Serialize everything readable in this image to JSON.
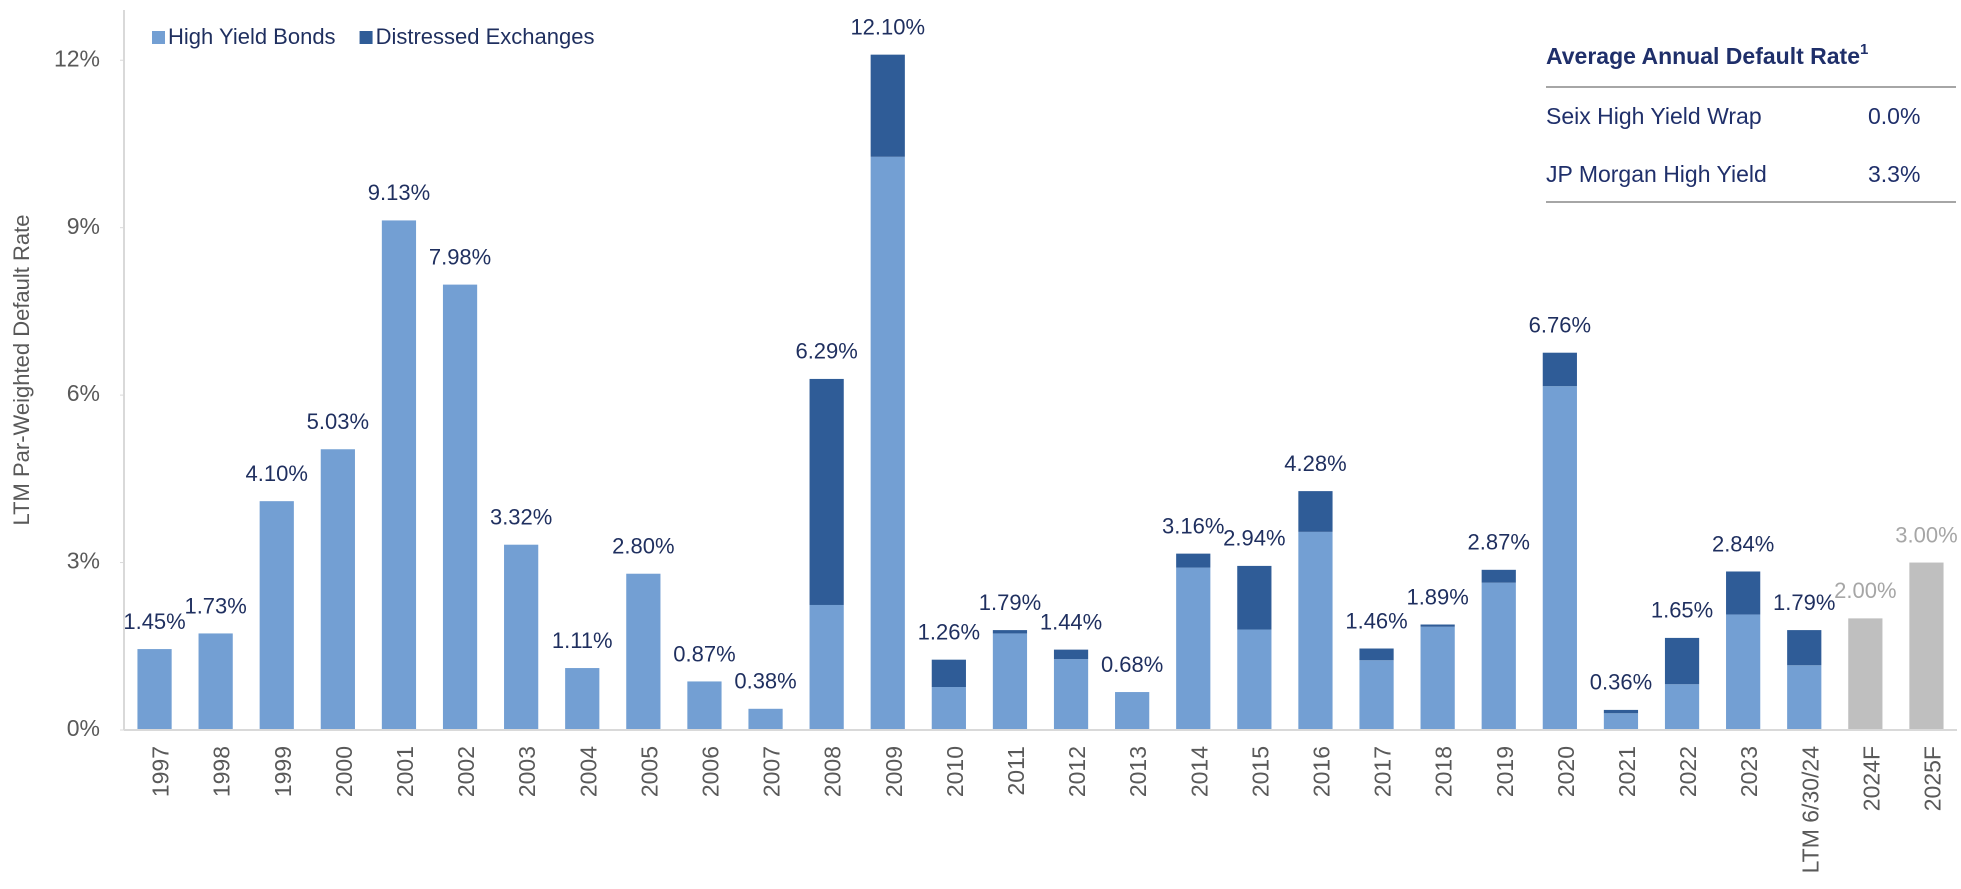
{
  "chart_data": {
    "type": "stacked_bar",
    "y_label": "LTM Par-Weighted Default Rate",
    "categories": [
      "1997",
      "1998",
      "1999",
      "2000",
      "2001",
      "2002",
      "2003",
      "2004",
      "2005",
      "2006",
      "2007",
      "2008",
      "2009",
      "2010",
      "2011",
      "2012",
      "2013",
      "2014",
      "2015",
      "2016",
      "2017",
      "2018",
      "2019",
      "2020",
      "2021",
      "2022",
      "2023",
      "LTM 6/30/24",
      "2024F",
      "2025F"
    ],
    "series": [
      {
        "name": "High Yield Bonds",
        "color": "#739fd3",
        "values": [
          1.45,
          1.73,
          4.1,
          5.03,
          9.13,
          7.98,
          3.32,
          1.11,
          2.8,
          0.87,
          0.38,
          2.24,
          10.27,
          0.77,
          1.73,
          1.27,
          0.68,
          2.91,
          1.8,
          3.55,
          1.25,
          1.85,
          2.64,
          6.16,
          0.3,
          0.82,
          2.07,
          1.16,
          null,
          null
        ]
      },
      {
        "name": "Distressed Exchanges",
        "color": "#2f5c97",
        "values": [
          0,
          0,
          0,
          0,
          0,
          0,
          0,
          0,
          0,
          0,
          0,
          4.05,
          1.83,
          0.49,
          0.06,
          0.17,
          0,
          0.25,
          1.14,
          0.73,
          0.21,
          0.04,
          0.23,
          0.6,
          0.06,
          0.83,
          0.77,
          0.63,
          null,
          null
        ]
      }
    ],
    "totals": [
      1.45,
      1.73,
      4.1,
      5.03,
      9.13,
      7.98,
      3.32,
      1.11,
      2.8,
      0.87,
      0.38,
      6.29,
      12.1,
      1.26,
      1.79,
      1.44,
      0.68,
      3.16,
      2.94,
      4.28,
      1.46,
      1.89,
      2.87,
      6.76,
      0.36,
      1.65,
      2.84,
      1.79,
      null,
      null
    ],
    "total_labels": [
      "1.45%",
      "1.73%",
      "4.10%",
      "5.03%",
      "9.13%",
      "7.98%",
      "3.32%",
      "1.11%",
      "2.80%",
      "0.87%",
      "0.38%",
      "6.29%",
      "12.10%",
      "1.26%",
      "1.79%",
      "1.44%",
      "0.68%",
      "3.16%",
      "2.94%",
      "4.28%",
      "1.46%",
      "1.89%",
      "2.87%",
      "6.76%",
      "0.36%",
      "1.65%",
      "2.84%",
      "1.79%",
      null,
      null
    ],
    "forecast": {
      "color": "#bfbfbf",
      "values": [
        null,
        null,
        null,
        null,
        null,
        null,
        null,
        null,
        null,
        null,
        null,
        null,
        null,
        null,
        null,
        null,
        null,
        null,
        null,
        null,
        null,
        null,
        null,
        null,
        null,
        null,
        null,
        null,
        2.0,
        3.0
      ],
      "value_labels": [
        null,
        null,
        null,
        null,
        null,
        null,
        null,
        null,
        null,
        null,
        null,
        null,
        null,
        null,
        null,
        null,
        null,
        null,
        null,
        null,
        null,
        null,
        null,
        null,
        null,
        null,
        null,
        null,
        "2.00%",
        "3.00%"
      ]
    },
    "ylim": [
      0,
      12.9
    ],
    "yticks": [
      {
        "value": 0,
        "label": "0%"
      },
      {
        "value": 3,
        "label": "3%"
      },
      {
        "value": 6,
        "label": "6%"
      },
      {
        "value": 9,
        "label": "9%"
      },
      {
        "value": 12,
        "label": "12%"
      }
    ],
    "table": {
      "title": "Average Annual Default Rate",
      "footnote": "1",
      "rows": [
        [
          "Seix High Yield Wrap",
          "0.0%"
        ],
        [
          "JP Morgan High Yield",
          "3.3%"
        ]
      ]
    }
  }
}
